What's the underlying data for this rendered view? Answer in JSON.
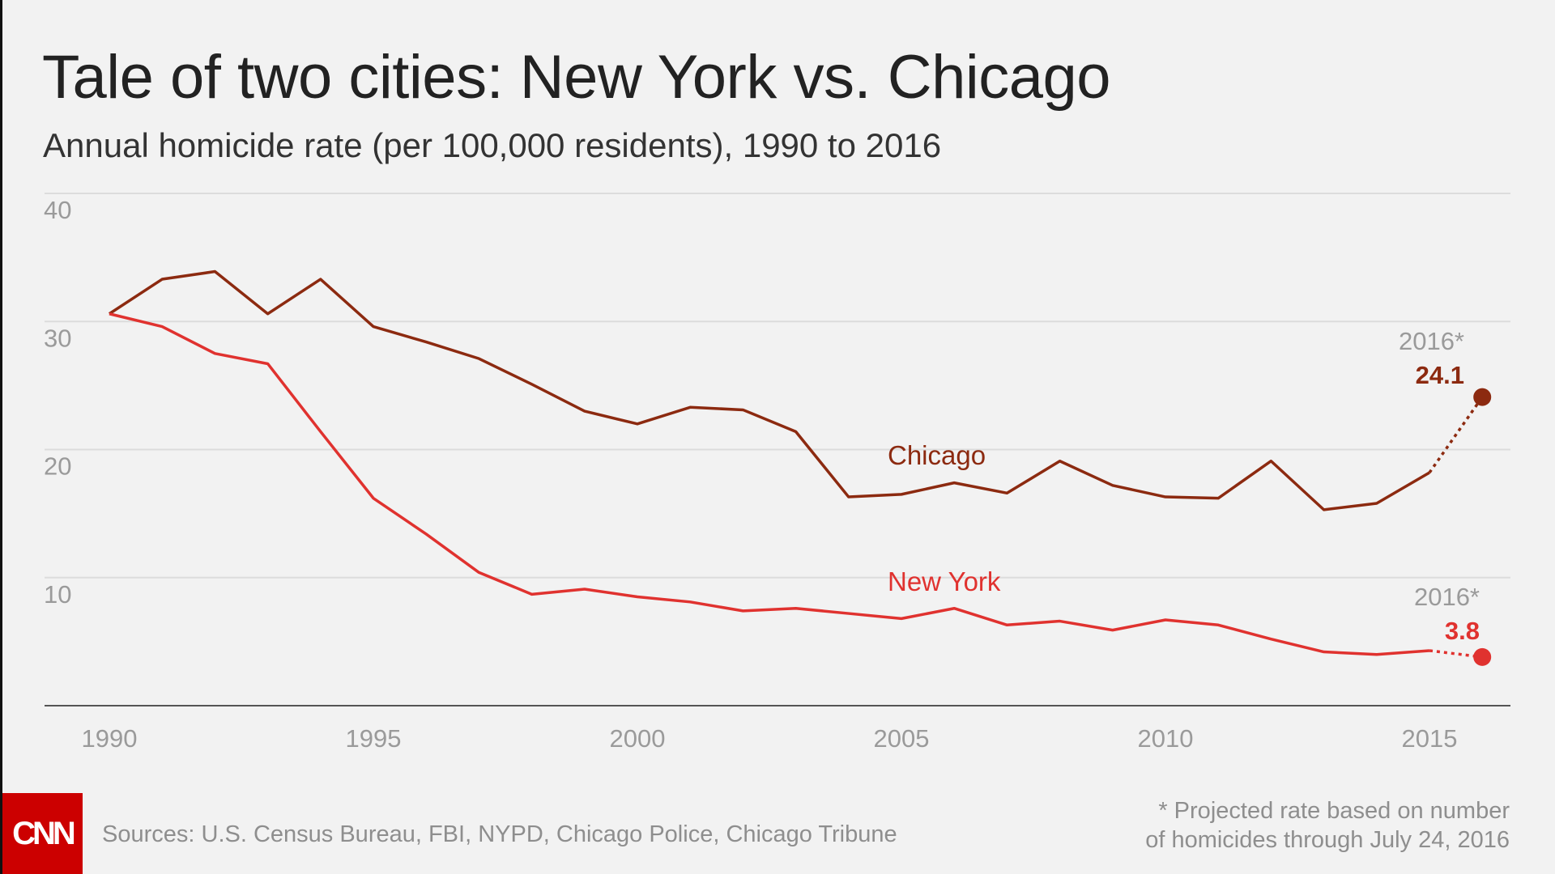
{
  "chart_data": {
    "type": "line",
    "title": "Tale of two cities: New York vs. Chicago",
    "subtitle": "Annual homicide rate (per 100,000 residents), 1990 to 2016",
    "x": [
      1990,
      1991,
      1992,
      1993,
      1994,
      1995,
      1996,
      1997,
      1998,
      1999,
      2000,
      2001,
      2002,
      2003,
      2004,
      2005,
      2006,
      2007,
      2008,
      2009,
      2010,
      2011,
      2012,
      2013,
      2014,
      2015,
      2016
    ],
    "series": [
      {
        "name": "Chicago",
        "color": "#8c2a10",
        "values": [
          30.6,
          33.3,
          33.9,
          30.6,
          33.3,
          29.6,
          28.4,
          27.1,
          25.1,
          23.0,
          22.0,
          23.3,
          23.1,
          21.4,
          16.3,
          16.5,
          17.4,
          16.6,
          19.1,
          17.2,
          16.3,
          16.2,
          19.1,
          15.3,
          15.8,
          18.2,
          24.1
        ],
        "end_label_year": "2016*",
        "end_label_value": "24.1"
      },
      {
        "name": "New York",
        "color": "#e0322f",
        "values": [
          30.6,
          29.6,
          27.5,
          26.7,
          21.4,
          16.2,
          13.4,
          10.4,
          8.7,
          9.1,
          8.5,
          8.1,
          7.4,
          7.6,
          7.2,
          6.8,
          7.6,
          6.3,
          6.6,
          5.9,
          6.7,
          6.3,
          5.2,
          4.2,
          4.0,
          4.3,
          3.8
        ],
        "end_label_year": "2016*",
        "end_label_value": "3.8"
      }
    ],
    "projected_from": 2015,
    "xlim": [
      1990,
      2016
    ],
    "ylim": [
      0,
      40
    ],
    "xticks": [
      "1990",
      "1995",
      "2000",
      "2005",
      "2010",
      "2015"
    ],
    "yticks": [
      "10",
      "20",
      "30",
      "40"
    ],
    "grid": true,
    "legend": "inline labels"
  },
  "footer": {
    "logo": "CNN",
    "sources": "Sources: U.S. Census Bureau, FBI, NYPD, Chicago Police, Chicago Tribune",
    "note_line1": "* Projected rate based on number",
    "note_line2": "of homicides through July 24, 2016"
  }
}
